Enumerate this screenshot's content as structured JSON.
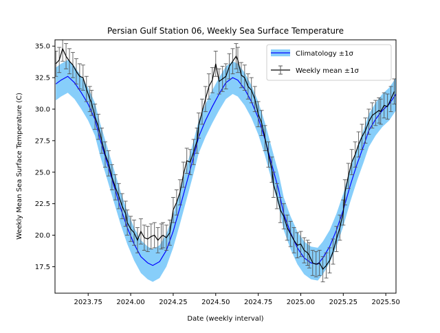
{
  "chart_data": {
    "type": "line",
    "title": "Persian Gulf Station 06, Weekly Sea Surface Temperature",
    "xlabel": "Date (weekly interval)",
    "ylabel": "Weekly Mean Sea Surface Temperature (C)",
    "xlim": [
      2023.555,
      2025.56
    ],
    "ylim": [
      15.4,
      35.5
    ],
    "xticks": [
      2023.75,
      2024.0,
      2024.25,
      2024.5,
      2024.75,
      2025.0,
      2025.25,
      2025.5
    ],
    "xtick_labels": [
      "2023.75",
      "2024.00",
      "2024.25",
      "2024.50",
      "2024.75",
      "2025.00",
      "2025.25",
      "2025.50"
    ],
    "yticks": [
      17.5,
      20.0,
      22.5,
      25.0,
      27.5,
      30.0,
      32.5,
      35.0
    ],
    "ytick_labels": [
      "17.5",
      "20.0",
      "22.5",
      "25.0",
      "27.5",
      "30.0",
      "32.5",
      "35.0"
    ],
    "grid": false,
    "legend": {
      "placement": "top-right",
      "entries": [
        "Climatology ±1σ",
        "Weekly mean ±1σ"
      ]
    },
    "colors": {
      "climatology_line": "#0000ff",
      "climatology_band": "#87cefa",
      "weekly_line": "#000000",
      "error_bars": "#555555"
    },
    "series": [
      {
        "name": "Climatology ±1σ",
        "style": "line-with-band",
        "x": [
          2023.56,
          2023.59,
          2023.63,
          2023.67,
          2023.71,
          2023.75,
          2023.79,
          2023.82,
          2023.86,
          2023.9,
          2023.94,
          2023.98,
          2024.02,
          2024.06,
          2024.1,
          2024.13,
          2024.17,
          2024.21,
          2024.25,
          2024.29,
          2024.33,
          2024.37,
          2024.4,
          2024.44,
          2024.48,
          2024.52,
          2024.56,
          2024.6,
          2024.63,
          2024.67,
          2024.71,
          2024.75,
          2024.79,
          2024.83,
          2024.87,
          2024.9,
          2024.94,
          2024.98,
          2025.02,
          2025.06,
          2025.1,
          2025.13,
          2025.17,
          2025.21,
          2025.25,
          2025.29,
          2025.33,
          2025.37,
          2025.4,
          2025.44,
          2025.48,
          2025.52,
          2025.56
        ],
        "y": [
          32.0,
          32.3,
          32.6,
          32.1,
          31.3,
          30.4,
          29.2,
          27.6,
          25.8,
          24.0,
          22.2,
          20.6,
          19.3,
          18.3,
          17.8,
          17.6,
          17.9,
          18.8,
          20.3,
          22.2,
          24.2,
          26.2,
          27.8,
          29.1,
          30.2,
          31.2,
          32.1,
          32.5,
          32.3,
          31.6,
          30.6,
          29.3,
          27.6,
          25.6,
          23.6,
          21.7,
          20.2,
          19.0,
          18.2,
          17.8,
          17.7,
          18.2,
          19.1,
          20.4,
          22.0,
          23.9,
          25.6,
          27.1,
          28.3,
          29.2,
          29.9,
          30.4,
          31.2
        ],
        "lower": [
          30.7,
          31.0,
          31.3,
          30.8,
          30.0,
          29.1,
          27.9,
          26.3,
          24.5,
          22.7,
          20.9,
          19.3,
          18.0,
          17.0,
          16.5,
          16.3,
          16.6,
          17.5,
          19.0,
          20.9,
          22.9,
          24.9,
          26.5,
          27.8,
          28.9,
          29.9,
          30.8,
          31.2,
          31.0,
          30.3,
          29.3,
          28.0,
          26.3,
          24.3,
          22.3,
          20.4,
          18.9,
          17.7,
          16.9,
          16.5,
          16.4,
          16.9,
          17.8,
          19.1,
          20.7,
          22.6,
          24.3,
          25.8,
          27.0,
          27.9,
          28.6,
          29.1,
          29.9
        ],
        "upper": [
          33.3,
          33.6,
          33.9,
          33.4,
          32.6,
          31.7,
          30.5,
          28.9,
          27.1,
          25.3,
          23.5,
          21.9,
          20.6,
          19.6,
          19.1,
          18.9,
          19.2,
          20.1,
          21.6,
          23.5,
          25.5,
          27.5,
          29.1,
          30.4,
          31.5,
          32.5,
          33.4,
          33.8,
          33.6,
          32.9,
          31.9,
          30.6,
          28.9,
          26.9,
          24.9,
          23.0,
          21.5,
          20.3,
          19.5,
          19.1,
          19.0,
          19.5,
          20.4,
          21.7,
          23.3,
          25.2,
          26.9,
          28.4,
          29.6,
          30.5,
          31.2,
          31.7,
          32.5
        ]
      },
      {
        "name": "Weekly mean ±1σ",
        "style": "line-with-errorbars",
        "x": [
          2023.56,
          2023.58,
          2023.6,
          2023.62,
          2023.64,
          2023.66,
          2023.68,
          2023.7,
          2023.72,
          2023.74,
          2023.76,
          2023.77,
          2023.79,
          2023.81,
          2023.83,
          2023.85,
          2023.87,
          2023.89,
          2023.91,
          2023.93,
          2023.95,
          2023.97,
          2023.98,
          2024.0,
          2024.02,
          2024.04,
          2024.06,
          2024.08,
          2024.1,
          2024.12,
          2024.14,
          2024.16,
          2024.18,
          2024.19,
          2024.21,
          2024.23,
          2024.25,
          2024.27,
          2024.29,
          2024.31,
          2024.33,
          2024.35,
          2024.37,
          2024.39,
          2024.4,
          2024.42,
          2024.44,
          2024.46,
          2024.48,
          2024.5,
          2024.52,
          2024.54,
          2024.56,
          2024.58,
          2024.6,
          2024.62,
          2024.63,
          2024.65,
          2024.67,
          2024.69,
          2024.71,
          2024.73,
          2024.75,
          2024.77,
          2024.79,
          2024.81,
          2024.83,
          2024.84,
          2024.86,
          2024.88,
          2024.9,
          2024.92,
          2024.94,
          2024.96,
          2024.98,
          2025.0,
          2025.02,
          2025.04,
          2025.05,
          2025.07,
          2025.09,
          2025.11,
          2025.13,
          2025.15,
          2025.17,
          2025.19,
          2025.21,
          2025.23,
          2025.25,
          2025.26,
          2025.28,
          2025.3,
          2025.32,
          2025.34,
          2025.36,
          2025.38,
          2025.4,
          2025.42,
          2025.44,
          2025.46,
          2025.47,
          2025.49,
          2025.51,
          2025.53,
          2025.55
        ],
        "y": [
          33.6,
          33.9,
          34.8,
          34.2,
          33.8,
          33.5,
          33.0,
          32.6,
          32.5,
          31.6,
          30.8,
          30.5,
          29.4,
          28.6,
          27.5,
          26.4,
          25.7,
          24.6,
          23.8,
          23.1,
          22.3,
          21.7,
          21.0,
          20.5,
          20.2,
          19.6,
          20.3,
          19.8,
          19.7,
          19.9,
          20.0,
          19.6,
          19.9,
          20.0,
          19.8,
          20.2,
          22.0,
          22.6,
          23.4,
          24.8,
          25.9,
          25.8,
          26.6,
          27.5,
          28.7,
          29.8,
          30.8,
          31.8,
          32.3,
          33.6,
          32.2,
          32.4,
          32.6,
          33.4,
          33.8,
          34.2,
          33.9,
          32.7,
          32.5,
          31.8,
          31.5,
          30.8,
          29.6,
          28.9,
          27.7,
          26.4,
          25.2,
          24.0,
          23.1,
          22.0,
          21.5,
          20.6,
          20.1,
          19.6,
          19.2,
          19.3,
          18.8,
          18.6,
          18.4,
          17.8,
          17.7,
          17.8,
          17.3,
          17.6,
          18.0,
          18.7,
          19.7,
          20.6,
          21.8,
          23.4,
          24.7,
          25.8,
          26.4,
          27.2,
          27.8,
          28.3,
          29.0,
          29.5,
          29.7,
          29.9,
          29.8,
          30.3,
          30.2,
          30.8,
          31.4
        ],
        "err": [
          1.0,
          1.0,
          1.0,
          1.0,
          1.0,
          1.0,
          1.0,
          1.0,
          1.0,
          1.0,
          1.0,
          1.0,
          1.0,
          1.0,
          1.0,
          1.0,
          1.0,
          1.0,
          1.0,
          1.0,
          1.0,
          1.0,
          1.0,
          1.0,
          1.0,
          1.0,
          1.0,
          1.0,
          1.0,
          1.0,
          1.0,
          1.0,
          1.0,
          1.0,
          1.0,
          1.0,
          1.0,
          1.0,
          1.0,
          1.0,
          1.0,
          1.0,
          1.0,
          1.0,
          1.0,
          1.0,
          1.0,
          1.0,
          1.0,
          1.0,
          1.0,
          1.0,
          1.0,
          1.0,
          1.0,
          1.0,
          1.0,
          1.0,
          1.0,
          1.0,
          1.0,
          1.0,
          1.0,
          1.0,
          1.0,
          1.0,
          1.0,
          1.0,
          1.0,
          1.0,
          1.0,
          1.0,
          1.0,
          1.0,
          1.0,
          1.0,
          1.0,
          1.0,
          1.0,
          1.0,
          1.0,
          1.0,
          1.0,
          1.0,
          1.0,
          1.0,
          1.0,
          1.0,
          1.0,
          1.0,
          1.0,
          1.0,
          1.0,
          1.0,
          1.0,
          1.0,
          1.0,
          1.0,
          1.0,
          1.0,
          1.0,
          1.0,
          1.0,
          1.0,
          1.0
        ]
      }
    ]
  }
}
